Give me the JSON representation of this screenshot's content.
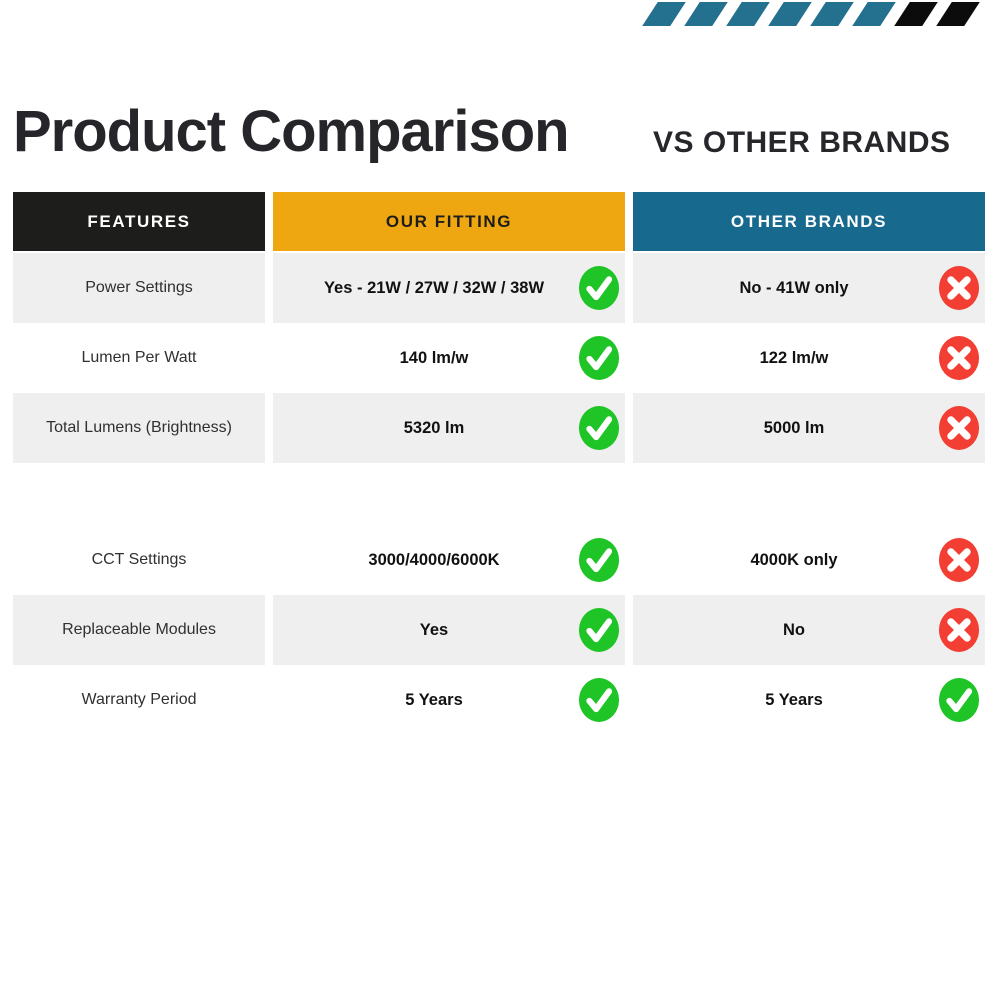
{
  "header": {
    "title": "Product Comparison",
    "subtitle": "VS OTHER BRANDS"
  },
  "decor": {
    "teal": "#24708f",
    "black": "#0c0c0c",
    "stripes": [
      "teal",
      "teal",
      "teal",
      "teal",
      "teal",
      "teal",
      "black",
      "black"
    ]
  },
  "table": {
    "columns": [
      {
        "key": "features",
        "label": "FEATURES",
        "bg": "#1d1d1b",
        "fg": "#ffffff"
      },
      {
        "key": "ours",
        "label": "OUR FITTING",
        "bg": "#efa711",
        "fg": "#1d1d1b"
      },
      {
        "key": "others",
        "label": "OTHER BRANDS",
        "bg": "#17698d",
        "fg": "#ffffff"
      }
    ],
    "rows": [
      {
        "feature": "Power Settings",
        "our": "Yes - 21W / 27W / 32W / 38W",
        "our_icon": "check",
        "other": "No - 41W only",
        "other_icon": "cross",
        "shaded": true,
        "spacer": false
      },
      {
        "feature": "Lumen Per Watt",
        "our": "140 lm/w",
        "our_icon": "check",
        "other": "122 lm/w",
        "other_icon": "cross",
        "shaded": false,
        "spacer": false
      },
      {
        "feature": "Total Lumens (Brightness)",
        "our": "5320 lm",
        "our_icon": "check",
        "other": "5000 lm",
        "other_icon": "cross",
        "shaded": true,
        "spacer": false
      },
      {
        "feature": "",
        "our": "",
        "our_icon": "none",
        "other": "",
        "other_icon": "none",
        "shaded": false,
        "spacer": true
      },
      {
        "feature": "CCT Settings",
        "our": "3000/4000/6000K",
        "our_icon": "check",
        "other": "4000K only",
        "other_icon": "cross",
        "shaded": false,
        "spacer": false
      },
      {
        "feature": "Replaceable Modules",
        "our": "Yes",
        "our_icon": "check",
        "other": "No",
        "other_icon": "cross",
        "shaded": true,
        "spacer": false
      },
      {
        "feature": "Warranty Period",
        "our": "5 Years",
        "our_icon": "check",
        "other": "5 Years",
        "other_icon": "check",
        "shaded": false,
        "spacer": false
      }
    ],
    "icons": {
      "check": "✓",
      "cross": "✕"
    },
    "colors": {
      "check_bg": "#1fc527",
      "cross_bg": "#f23e33",
      "icon_glyph": "#ffffff",
      "row_shade": "#efefef"
    }
  }
}
